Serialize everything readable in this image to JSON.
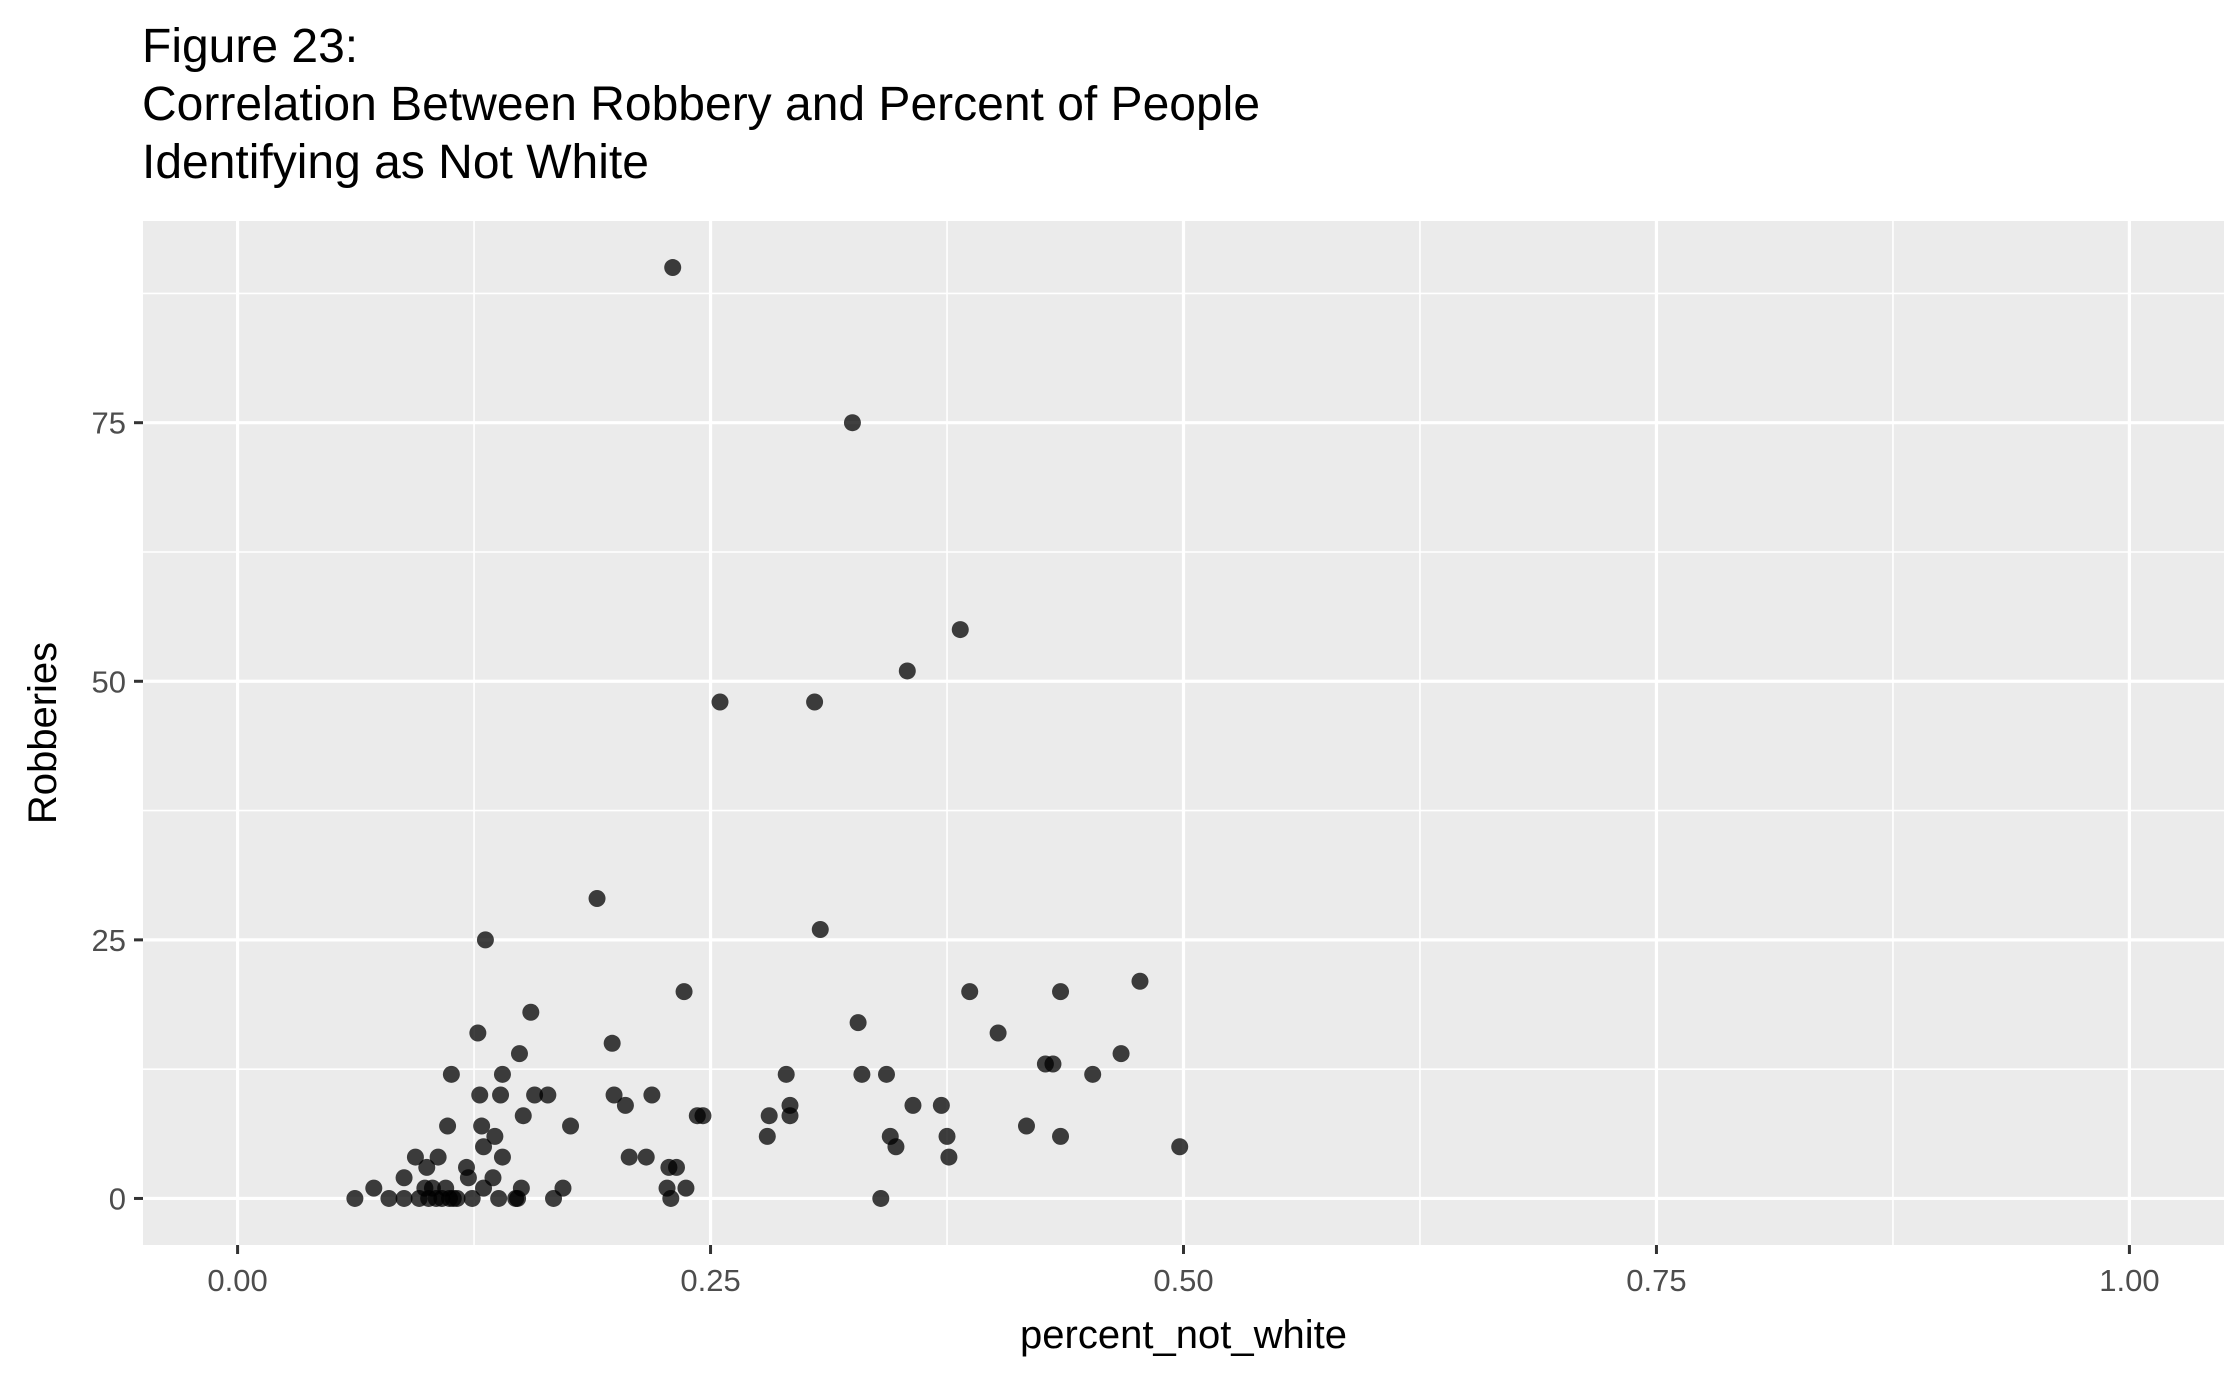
{
  "chart_data": {
    "type": "scatter",
    "title_lines": [
      "Figure 23:",
      "Correlation Between Robbery and Percent of People",
      "Identifying as Not White"
    ],
    "xlabel": "percent_not_white",
    "ylabel": "Robberies",
    "xlim": [
      -0.05,
      1.05
    ],
    "ylim": [
      -4.5,
      94.5
    ],
    "x_ticks": [
      0.0,
      0.25,
      0.5,
      0.75,
      1.0
    ],
    "x_tick_labels": [
      "0.00",
      "0.25",
      "0.50",
      "0.75",
      "1.00"
    ],
    "y_ticks": [
      0,
      25,
      50,
      75
    ],
    "y_tick_labels": [
      "0",
      "25",
      "50",
      "75"
    ],
    "grid": true,
    "panel_background": "#ebebeb",
    "grid_color": "#ffffff",
    "point_color": "#000000",
    "point_opacity": 0.75,
    "points": [
      {
        "x": 0.062,
        "y": 0
      },
      {
        "x": 0.072,
        "y": 1
      },
      {
        "x": 0.08,
        "y": 0
      },
      {
        "x": 0.088,
        "y": 2
      },
      {
        "x": 0.088,
        "y": 0
      },
      {
        "x": 0.094,
        "y": 4
      },
      {
        "x": 0.096,
        "y": 0
      },
      {
        "x": 0.099,
        "y": 1
      },
      {
        "x": 0.1,
        "y": 3
      },
      {
        "x": 0.101,
        "y": 0
      },
      {
        "x": 0.103,
        "y": 1
      },
      {
        "x": 0.105,
        "y": 0
      },
      {
        "x": 0.106,
        "y": 4
      },
      {
        "x": 0.108,
        "y": 0
      },
      {
        "x": 0.11,
        "y": 1
      },
      {
        "x": 0.111,
        "y": 7
      },
      {
        "x": 0.112,
        "y": 0
      },
      {
        "x": 0.113,
        "y": 12
      },
      {
        "x": 0.114,
        "y": 0
      },
      {
        "x": 0.116,
        "y": 0
      },
      {
        "x": 0.121,
        "y": 3
      },
      {
        "x": 0.122,
        "y": 2
      },
      {
        "x": 0.124,
        "y": 0
      },
      {
        "x": 0.127,
        "y": 16
      },
      {
        "x": 0.128,
        "y": 10
      },
      {
        "x": 0.129,
        "y": 7
      },
      {
        "x": 0.13,
        "y": 1
      },
      {
        "x": 0.13,
        "y": 5
      },
      {
        "x": 0.131,
        "y": 25
      },
      {
        "x": 0.135,
        "y": 2
      },
      {
        "x": 0.136,
        "y": 6
      },
      {
        "x": 0.138,
        "y": 0
      },
      {
        "x": 0.139,
        "y": 10
      },
      {
        "x": 0.14,
        "y": 4
      },
      {
        "x": 0.14,
        "y": 12
      },
      {
        "x": 0.147,
        "y": 0
      },
      {
        "x": 0.148,
        "y": 0
      },
      {
        "x": 0.149,
        "y": 14
      },
      {
        "x": 0.15,
        "y": 1
      },
      {
        "x": 0.151,
        "y": 8
      },
      {
        "x": 0.155,
        "y": 18
      },
      {
        "x": 0.157,
        "y": 10
      },
      {
        "x": 0.164,
        "y": 10
      },
      {
        "x": 0.167,
        "y": 0
      },
      {
        "x": 0.172,
        "y": 1
      },
      {
        "x": 0.176,
        "y": 7
      },
      {
        "x": 0.19,
        "y": 29
      },
      {
        "x": 0.198,
        "y": 15
      },
      {
        "x": 0.199,
        "y": 10
      },
      {
        "x": 0.205,
        "y": 9
      },
      {
        "x": 0.207,
        "y": 4
      },
      {
        "x": 0.216,
        "y": 4
      },
      {
        "x": 0.219,
        "y": 10
      },
      {
        "x": 0.227,
        "y": 1
      },
      {
        "x": 0.228,
        "y": 3
      },
      {
        "x": 0.229,
        "y": 0
      },
      {
        "x": 0.23,
        "y": 90
      },
      {
        "x": 0.232,
        "y": 3
      },
      {
        "x": 0.236,
        "y": 20
      },
      {
        "x": 0.237,
        "y": 1
      },
      {
        "x": 0.243,
        "y": 8
      },
      {
        "x": 0.246,
        "y": 8
      },
      {
        "x": 0.255,
        "y": 48
      },
      {
        "x": 0.28,
        "y": 6
      },
      {
        "x": 0.281,
        "y": 8
      },
      {
        "x": 0.29,
        "y": 12
      },
      {
        "x": 0.292,
        "y": 9
      },
      {
        "x": 0.292,
        "y": 8
      },
      {
        "x": 0.305,
        "y": 48
      },
      {
        "x": 0.308,
        "y": 26
      },
      {
        "x": 0.325,
        "y": 75
      },
      {
        "x": 0.328,
        "y": 17
      },
      {
        "x": 0.33,
        "y": 12
      },
      {
        "x": 0.34,
        "y": 0
      },
      {
        "x": 0.343,
        "y": 12
      },
      {
        "x": 0.345,
        "y": 6
      },
      {
        "x": 0.348,
        "y": 5
      },
      {
        "x": 0.354,
        "y": 51
      },
      {
        "x": 0.357,
        "y": 9
      },
      {
        "x": 0.372,
        "y": 9
      },
      {
        "x": 0.375,
        "y": 6
      },
      {
        "x": 0.376,
        "y": 4
      },
      {
        "x": 0.382,
        "y": 55
      },
      {
        "x": 0.387,
        "y": 20
      },
      {
        "x": 0.402,
        "y": 16
      },
      {
        "x": 0.417,
        "y": 7
      },
      {
        "x": 0.427,
        "y": 13
      },
      {
        "x": 0.431,
        "y": 13
      },
      {
        "x": 0.435,
        "y": 20
      },
      {
        "x": 0.435,
        "y": 6
      },
      {
        "x": 0.452,
        "y": 12
      },
      {
        "x": 0.467,
        "y": 14
      },
      {
        "x": 0.477,
        "y": 21
      },
      {
        "x": 0.498,
        "y": 5
      }
    ]
  }
}
